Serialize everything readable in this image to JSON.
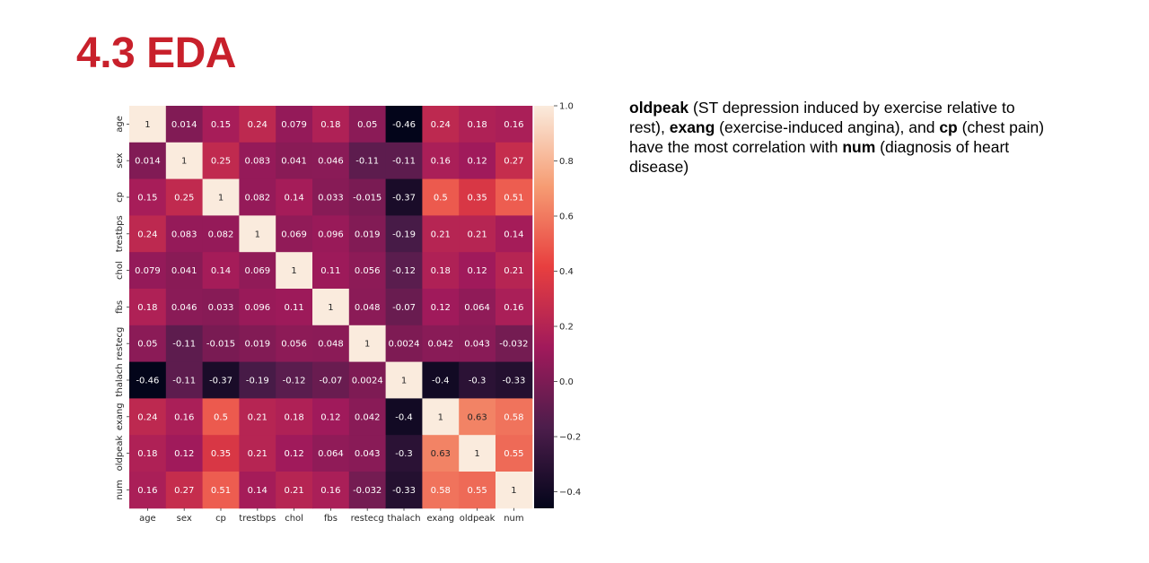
{
  "slide": {
    "title": "4.3 EDA"
  },
  "description": {
    "term1": "oldpeak",
    "text1": " (ST depression induced by exercise relative to rest), ",
    "term2": "exang",
    "text2": " (exercise-induced angina), and ",
    "term3": "cp",
    "text3": " (chest pain) have the most correlation with ",
    "term4": "num",
    "text4": " (diagnosis of heart disease)"
  },
  "chart_data": {
    "type": "heatmap",
    "title": "",
    "colormap": "rocket",
    "colormap_stops": [
      "#03051a",
      "#4c1d4b",
      "#a11a5b",
      "#e83f3f",
      "#f69c73",
      "#faebdd"
    ],
    "variables": [
      "age",
      "sex",
      "cp",
      "trestbps",
      "chol",
      "fbs",
      "restecg",
      "thalach",
      "exang",
      "oldpeak",
      "num"
    ],
    "values": [
      [
        1,
        0.014,
        0.15,
        0.24,
        0.079,
        0.18,
        0.05,
        -0.46,
        0.24,
        0.18,
        0.16
      ],
      [
        0.014,
        1,
        0.25,
        0.083,
        0.041,
        0.046,
        -0.11,
        -0.11,
        0.16,
        0.12,
        0.27
      ],
      [
        0.15,
        0.25,
        1,
        0.082,
        0.14,
        0.033,
        -0.015,
        -0.37,
        0.5,
        0.35,
        0.51
      ],
      [
        0.24,
        0.083,
        0.082,
        1,
        0.069,
        0.096,
        0.019,
        -0.19,
        0.21,
        0.21,
        0.14
      ],
      [
        0.079,
        0.041,
        0.14,
        0.069,
        1,
        0.11,
        0.056,
        -0.12,
        0.18,
        0.12,
        0.21
      ],
      [
        0.18,
        0.046,
        0.033,
        0.096,
        0.11,
        1,
        0.048,
        -0.07,
        0.12,
        0.064,
        0.16
      ],
      [
        0.05,
        -0.11,
        -0.015,
        0.019,
        0.056,
        0.048,
        1,
        0.0024,
        0.042,
        0.043,
        -0.032
      ],
      [
        -0.46,
        -0.11,
        -0.37,
        -0.19,
        -0.12,
        -0.07,
        0.0024,
        1,
        -0.4,
        -0.3,
        -0.33
      ],
      [
        0.24,
        0.16,
        0.5,
        0.21,
        0.18,
        0.12,
        0.042,
        -0.4,
        1,
        0.63,
        0.58
      ],
      [
        0.18,
        0.12,
        0.35,
        0.21,
        0.12,
        0.064,
        0.043,
        -0.3,
        0.63,
        1,
        0.55
      ],
      [
        0.16,
        0.27,
        0.51,
        0.14,
        0.21,
        0.16,
        -0.032,
        -0.33,
        0.58,
        0.55,
        1
      ]
    ],
    "colorbar": {
      "vmin": -0.46,
      "vmax": 1.0,
      "ticks": [
        1.0,
        0.8,
        0.6,
        0.4,
        0.2,
        0.0,
        -0.2,
        -0.4
      ],
      "tick_labels": [
        "1.0",
        "0.8",
        "0.6",
        "0.4",
        "0.2",
        "0.0",
        "−0.2",
        "−0.4"
      ]
    }
  }
}
